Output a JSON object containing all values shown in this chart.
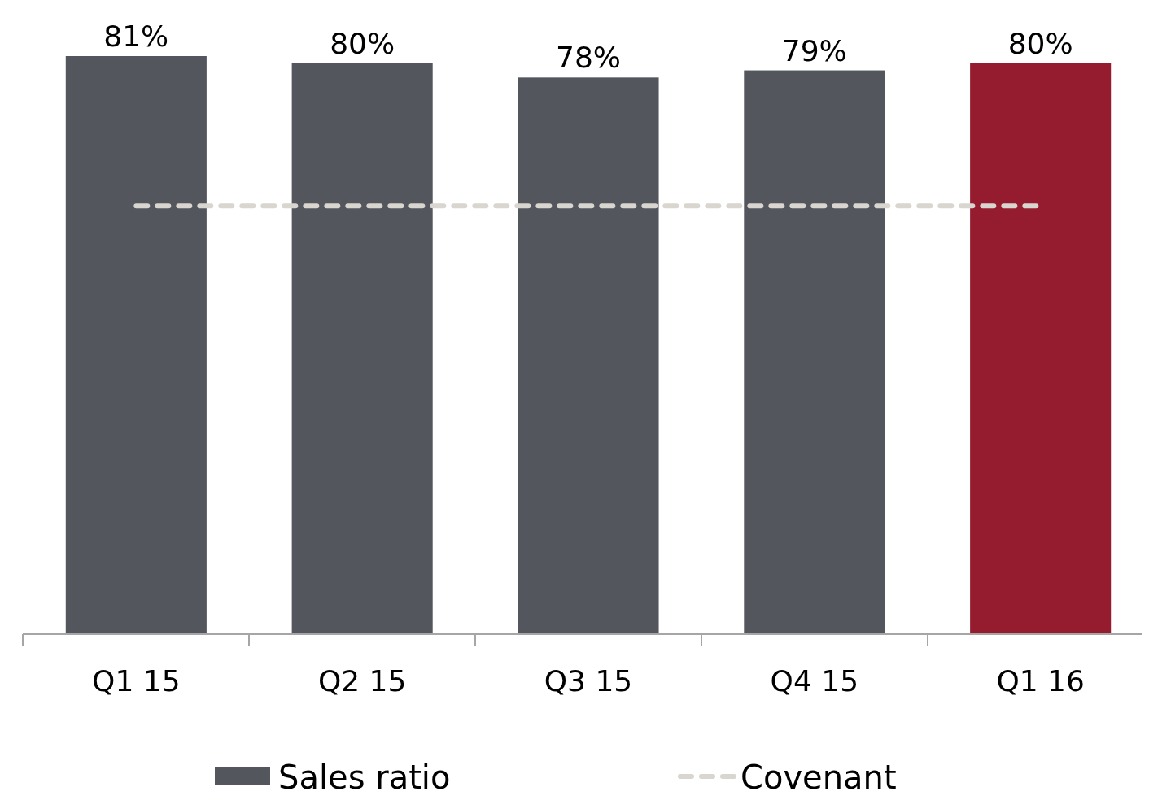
{
  "chart_data": {
    "type": "bar",
    "categories": [
      "Q1 15",
      "Q2 15",
      "Q3 15",
      "Q4 15",
      "Q1 16"
    ],
    "series": [
      {
        "name": "Sales ratio",
        "color": "#53565c",
        "colors": [
          "#53565c",
          "#53565c",
          "#53565c",
          "#53565c",
          "#951b2f"
        ],
        "values": [
          81,
          80,
          78,
          79,
          80
        ],
        "value_labels": [
          "81%",
          "80%",
          "78%",
          "79%",
          "80%"
        ]
      },
      {
        "name": "Covenant",
        "type": "line",
        "color": "#d9d5cf",
        "line_style": "dashed",
        "values": [
          60,
          60,
          60,
          60,
          60
        ]
      }
    ],
    "legend": "bottom"
  }
}
